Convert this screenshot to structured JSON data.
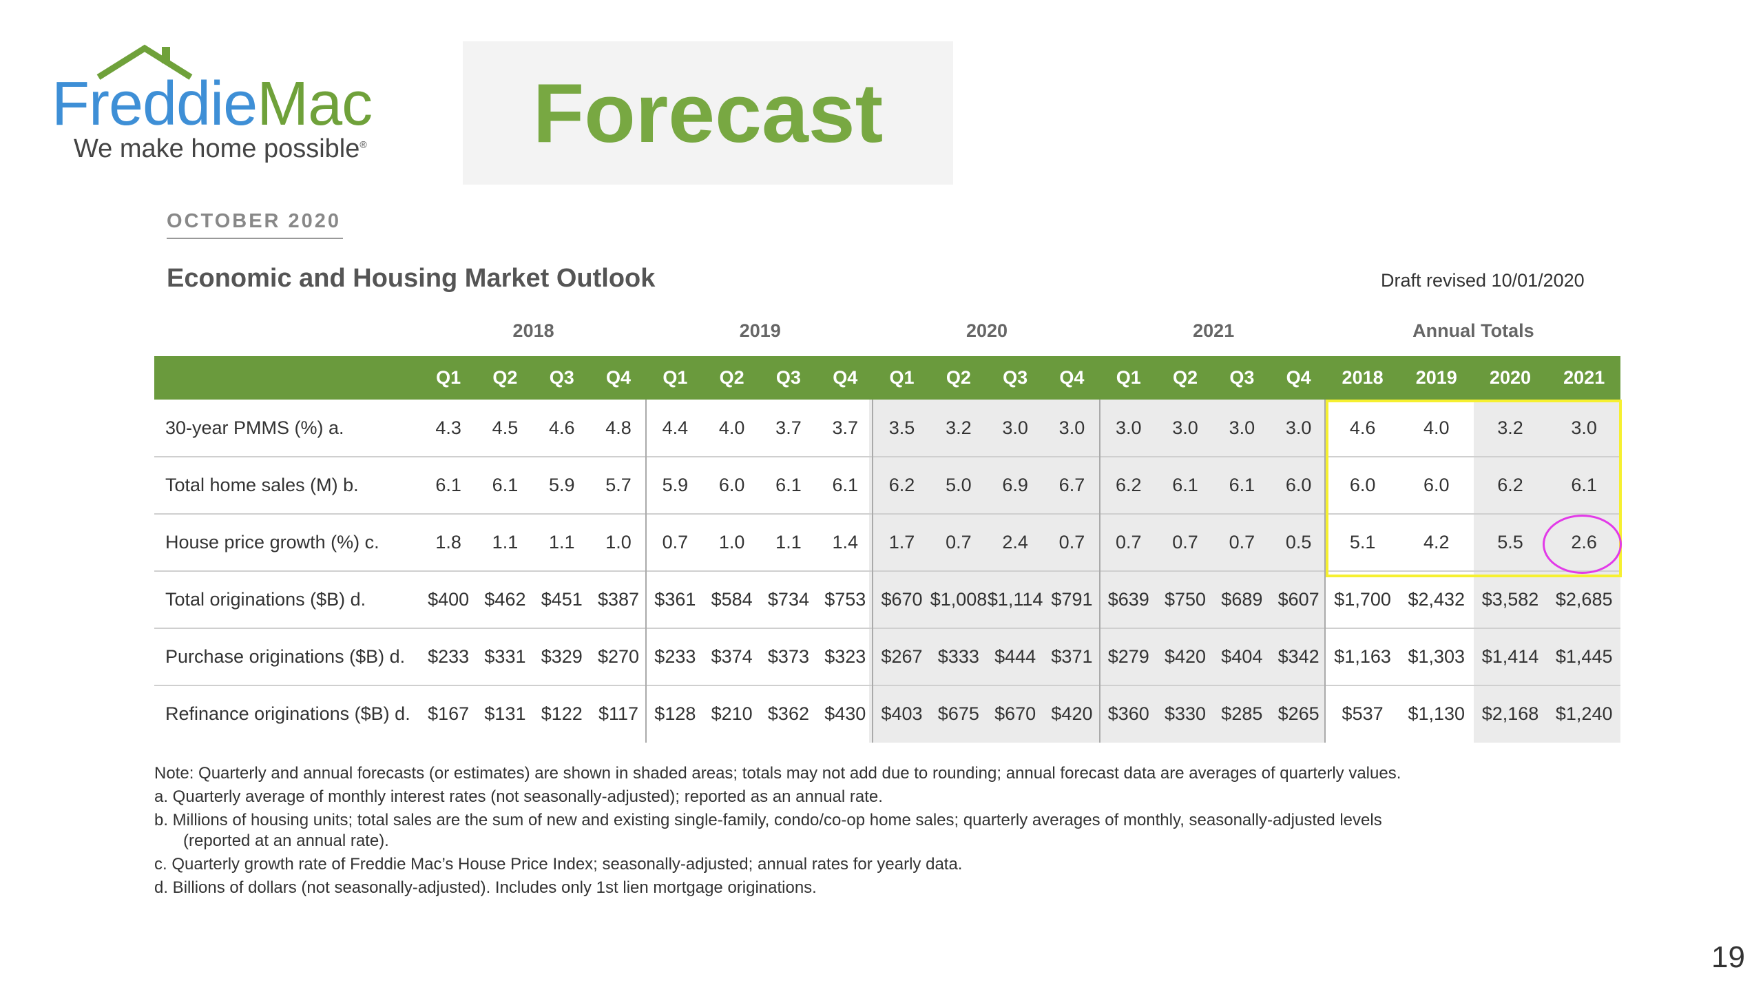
{
  "brand": {
    "name_part1": "Freddie",
    "name_part2": "Mac",
    "tagline": "We make home possible",
    "reg_mark": "®"
  },
  "header": {
    "title": "Forecast",
    "date": "OCTOBER 2020"
  },
  "report": {
    "title": "Economic and Housing Market Outlook",
    "draft_note": "Draft revised 10/01/2020"
  },
  "table": {
    "year_groups": [
      "2018",
      "2019",
      "2020",
      "2021",
      "Annual Totals"
    ],
    "columns": [
      "Q1",
      "Q2",
      "Q3",
      "Q4",
      "Q1",
      "Q2",
      "Q3",
      "Q4",
      "Q1",
      "Q2",
      "Q3",
      "Q4",
      "Q1",
      "Q2",
      "Q3",
      "Q4",
      "2018",
      "2019",
      "2020",
      "2021"
    ],
    "rows": [
      {
        "label": "30-year PMMS (%) a.",
        "values": [
          "4.3",
          "4.5",
          "4.6",
          "4.8",
          "4.4",
          "4.0",
          "3.7",
          "3.7",
          "3.5",
          "3.2",
          "3.0",
          "3.0",
          "3.0",
          "3.0",
          "3.0",
          "3.0",
          "4.6",
          "4.0",
          "3.2",
          "3.0"
        ]
      },
      {
        "label": "Total home sales (M) b.",
        "values": [
          "6.1",
          "6.1",
          "5.9",
          "5.7",
          "5.9",
          "6.0",
          "6.1",
          "6.1",
          "6.2",
          "5.0",
          "6.9",
          "6.7",
          "6.2",
          "6.1",
          "6.1",
          "6.0",
          "6.0",
          "6.0",
          "6.2",
          "6.1"
        ]
      },
      {
        "label": "House price growth (%) c.",
        "values": [
          "1.8",
          "1.1",
          "1.1",
          "1.0",
          "0.7",
          "1.0",
          "1.1",
          "1.4",
          "1.7",
          "0.7",
          "2.4",
          "0.7",
          "0.7",
          "0.7",
          "0.7",
          "0.5",
          "5.1",
          "4.2",
          "5.5",
          "2.6"
        ]
      },
      {
        "label": "Total originations ($B) d.",
        "values": [
          "$400",
          "$462",
          "$451",
          "$387",
          "$361",
          "$584",
          "$734",
          "$753",
          "$670",
          "$1,008",
          "$1,114",
          "$791",
          "$639",
          "$750",
          "$689",
          "$607",
          "$1,700",
          "$2,432",
          "$3,582",
          "$2,685"
        ]
      },
      {
        "label": "Purchase originations ($B) d.",
        "values": [
          "$233",
          "$331",
          "$329",
          "$270",
          "$233",
          "$374",
          "$373",
          "$323",
          "$267",
          "$333",
          "$444",
          "$371",
          "$279",
          "$420",
          "$404",
          "$342",
          "$1,163",
          "$1,303",
          "$1,414",
          "$1,445"
        ]
      },
      {
        "label": "Refinance originations ($B) d.",
        "values": [
          "$167",
          "$131",
          "$122",
          "$117",
          "$128",
          "$210",
          "$362",
          "$430",
          "$403",
          "$675",
          "$670",
          "$420",
          "$360",
          "$330",
          "$285",
          "$265",
          "$537",
          "$1,130",
          "$2,168",
          "$1,240"
        ]
      }
    ]
  },
  "notes": {
    "main": "Note: Quarterly and annual forecasts (or estimates) are shown in shaded areas; totals may not add due to rounding; annual forecast data are averages of quarterly values.",
    "a": "a. Quarterly average of monthly interest rates (not seasonally-adjusted); reported as an annual rate.",
    "b": "b. Millions of housing units; total sales are the sum of new and existing single-family, condo/co-op home sales; quarterly averages of monthly, seasonally-adjusted levels",
    "b_cont": "(reported at an annual rate).",
    "c": "c. Quarterly growth rate of Freddie Mac’s House Price Index; seasonally-adjusted; annual rates for yearly data.",
    "d": "d. Billions of dollars (not seasonally-adjusted). Includes only 1st lien mortgage originations."
  },
  "page_number": "19",
  "colors": {
    "brand_blue": "#3e8fd6",
    "brand_green": "#6fa13a",
    "header_green": "#6a9a3d",
    "forecast_shade": "#ebebeb",
    "highlight_yellow": "#f6f030",
    "highlight_magenta": "#e23ae8"
  }
}
